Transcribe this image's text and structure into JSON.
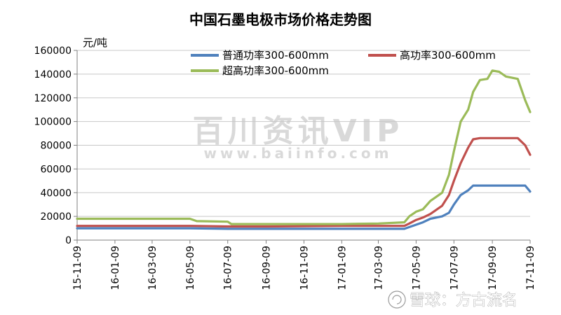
{
  "chart_data": {
    "type": "line",
    "title": "中国石墨电极市场价格走势图",
    "ylabel": "元/吨",
    "xlabel": "",
    "ylim": [
      0,
      160000
    ],
    "yticks": [
      "0",
      "20000",
      "40000",
      "60000",
      "80000",
      "100000",
      "120000",
      "140000",
      "160000"
    ],
    "xtick_labels": [
      "15-11-09",
      "16-01-09",
      "16-03-09",
      "16-05-09",
      "16-07-09",
      "16-09-09",
      "16-11-09",
      "17-01-09",
      "17-03-09",
      "17-05-09",
      "17-07-09",
      "17-09-09",
      "17-11-09"
    ],
    "grid": true,
    "legend": "top",
    "series": [
      {
        "name": "普通功率300-600mm",
        "color": "#4f81bd",
        "points": [
          [
            "15-11-09",
            10000
          ],
          [
            "16-01-09",
            10000
          ],
          [
            "16-05-09",
            10000
          ],
          [
            "16-07-09",
            9500
          ],
          [
            "16-09-09",
            9500
          ],
          [
            "17-01-09",
            9500
          ],
          [
            "17-03-09",
            9500
          ],
          [
            "17-04-20",
            9500
          ],
          [
            "17-04-28",
            11000
          ],
          [
            "17-05-09",
            13000
          ],
          [
            "17-05-20",
            15000
          ],
          [
            "17-06-01",
            18000
          ],
          [
            "17-06-20",
            20000
          ],
          [
            "17-07-01",
            23000
          ],
          [
            "17-07-09",
            30000
          ],
          [
            "17-07-20",
            38000
          ],
          [
            "17-08-01",
            42000
          ],
          [
            "17-08-09",
            46000
          ],
          [
            "17-08-20",
            46000
          ],
          [
            "17-09-09",
            46000
          ],
          [
            "17-10-01",
            46000
          ],
          [
            "17-10-20",
            46000
          ],
          [
            "17-11-01",
            46000
          ],
          [
            "17-11-09",
            41000
          ]
        ]
      },
      {
        "name": "高功率300-600mm",
        "color": "#c0504d",
        "points": [
          [
            "15-11-09",
            12000
          ],
          [
            "16-01-09",
            12000
          ],
          [
            "16-05-09",
            12000
          ],
          [
            "16-07-09",
            11500
          ],
          [
            "16-09-09",
            11500
          ],
          [
            "17-01-09",
            12000
          ],
          [
            "17-03-09",
            12000
          ],
          [
            "17-04-20",
            12000
          ],
          [
            "17-04-28",
            14000
          ],
          [
            "17-05-09",
            17000
          ],
          [
            "17-05-20",
            19000
          ],
          [
            "17-06-01",
            22000
          ],
          [
            "17-06-20",
            29000
          ],
          [
            "17-07-01",
            38000
          ],
          [
            "17-07-09",
            50000
          ],
          [
            "17-07-20",
            65000
          ],
          [
            "17-08-01",
            78000
          ],
          [
            "17-08-09",
            85000
          ],
          [
            "17-08-20",
            86000
          ],
          [
            "17-09-09",
            86000
          ],
          [
            "17-10-01",
            86000
          ],
          [
            "17-10-20",
            86000
          ],
          [
            "17-11-01",
            80000
          ],
          [
            "17-11-09",
            72000
          ]
        ]
      },
      {
        "name": "超高功率300-600mm",
        "color": "#9bbb59",
        "points": [
          [
            "15-11-09",
            18000
          ],
          [
            "16-01-09",
            18000
          ],
          [
            "16-05-09",
            18000
          ],
          [
            "16-05-20",
            16000
          ],
          [
            "16-07-09",
            15500
          ],
          [
            "16-07-15",
            13500
          ],
          [
            "16-09-09",
            13500
          ],
          [
            "17-01-09",
            13500
          ],
          [
            "17-03-09",
            14000
          ],
          [
            "17-04-20",
            15000
          ],
          [
            "17-04-28",
            20000
          ],
          [
            "17-05-09",
            24000
          ],
          [
            "17-05-20",
            26000
          ],
          [
            "17-06-01",
            33000
          ],
          [
            "17-06-20",
            40000
          ],
          [
            "17-07-01",
            55000
          ],
          [
            "17-07-09",
            75000
          ],
          [
            "17-07-20",
            100000
          ],
          [
            "17-08-01",
            110000
          ],
          [
            "17-08-09",
            125000
          ],
          [
            "17-08-20",
            135000
          ],
          [
            "17-09-01",
            136000
          ],
          [
            "17-09-09",
            143000
          ],
          [
            "17-09-20",
            142000
          ],
          [
            "17-10-01",
            138000
          ],
          [
            "17-10-20",
            136000
          ],
          [
            "17-11-01",
            118000
          ],
          [
            "17-11-09",
            108000
          ]
        ]
      }
    ]
  },
  "watermark": {
    "text_main": "百川资讯VIP",
    "text_sub": "www.baiinfo.com"
  },
  "credit": {
    "text": "雪球：方古流名"
  }
}
